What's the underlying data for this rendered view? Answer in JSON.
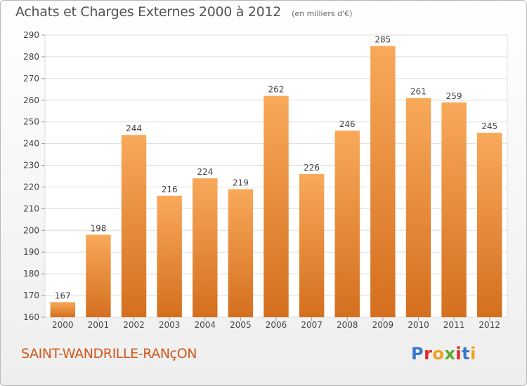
{
  "header": {
    "title": "Achats et Charges Externes 2000 à 2012",
    "unit": "(en milliers d'€)"
  },
  "commune": "SAINT-WANDRILLE-RANçON",
  "brand": {
    "name": "Proxiti",
    "letter_colors": [
      "#3a78c9",
      "#e2262b",
      "#f0a21c",
      "#5aa92c",
      "#e2262b",
      "#3a78c9",
      "#f0a21c"
    ]
  },
  "colors": {
    "bar_top": "#f8a95a",
    "bar_bottom": "#d46f1e",
    "grid": "#dddddd",
    "axis_text": "#444444",
    "commune": "#d2571a"
  },
  "chart_data": {
    "type": "bar",
    "title": "Achats et Charges Externes 2000 à 2012",
    "subtitle": "(en milliers d'€)",
    "categories": [
      "2000",
      "2001",
      "2002",
      "2003",
      "2004",
      "2005",
      "2006",
      "2007",
      "2008",
      "2009",
      "2010",
      "2011",
      "2012"
    ],
    "values": [
      167,
      198,
      244,
      216,
      224,
      219,
      262,
      226,
      246,
      285,
      261,
      259,
      245
    ],
    "ylim": [
      160,
      290
    ],
    "yticks": [
      160,
      170,
      180,
      190,
      200,
      210,
      220,
      230,
      240,
      250,
      260,
      270,
      280,
      290
    ],
    "grid": true,
    "data_labels": true
  }
}
